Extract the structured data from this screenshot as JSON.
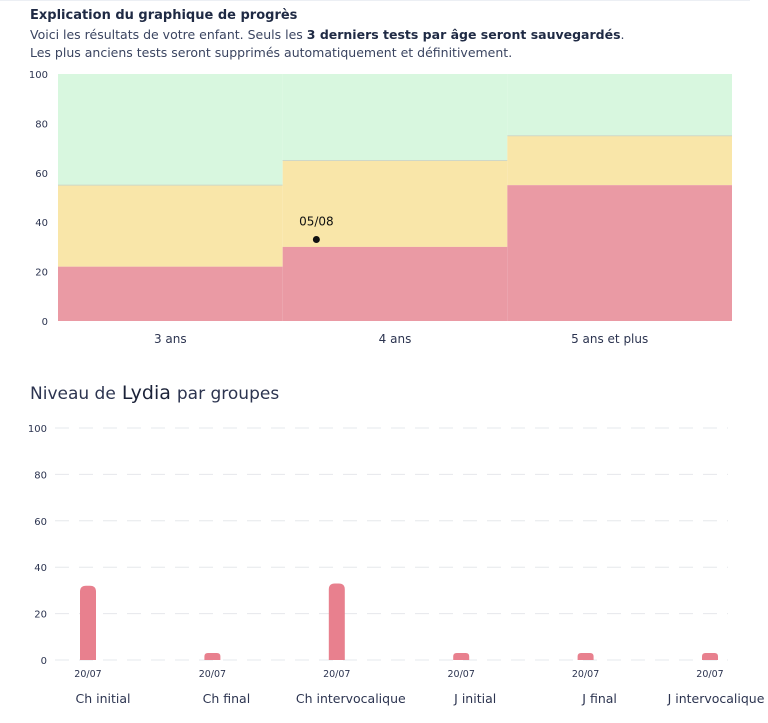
{
  "intro": {
    "title": "Explication du graphique de progrès",
    "line1_pre": "Voici les résultats de votre enfant. Seuls les ",
    "line1_bold": "3 derniers tests par âge seront sauvegardés",
    "line1_post": ".",
    "line2": "Les plus anciens tests seront supprimés automatiquement et définitivement."
  },
  "colors": {
    "green": "#d8f7df",
    "yellow": "#f9e6a9",
    "red": "#ea9aa4",
    "bar": "#e8808e",
    "grid": "#e6e8ec",
    "text": "#2c3450"
  },
  "heading": {
    "prefix": "Niveau de",
    "name": "Lydia",
    "suffix": "par groupes"
  },
  "chart_data": [
    {
      "type": "area",
      "title": "",
      "ylim": [
        0,
        100
      ],
      "yticks": [
        "0",
        "20",
        "40",
        "60",
        "80",
        "100"
      ],
      "categories": [
        "3 ans",
        "4 ans",
        "5 ans et plus"
      ],
      "bands": [
        {
          "category": "3 ans",
          "red_max": 22,
          "yellow_max": 55,
          "green_max": 100
        },
        {
          "category": "4 ans",
          "red_max": 30,
          "yellow_max": 65,
          "green_max": 100
        },
        {
          "category": "5 ans et plus",
          "red_max": 55,
          "yellow_max": 75,
          "green_max": 100
        }
      ],
      "points": [
        {
          "category": "4 ans",
          "label": "05/08",
          "value": 33
        }
      ]
    },
    {
      "type": "bar",
      "title": "",
      "ylim": [
        0,
        100
      ],
      "yticks": [
        "0",
        "20",
        "40",
        "60",
        "80",
        "100"
      ],
      "grid": true,
      "categories": [
        "Ch initial",
        "Ch final",
        "Ch intervocalique",
        "J initial",
        "J final",
        "J intervocalique"
      ],
      "bar_labels": [
        "20/07",
        "20/07",
        "20/07",
        "20/07",
        "20/07",
        "20/07"
      ],
      "values": [
        32,
        3,
        33,
        3,
        3,
        3
      ]
    }
  ]
}
